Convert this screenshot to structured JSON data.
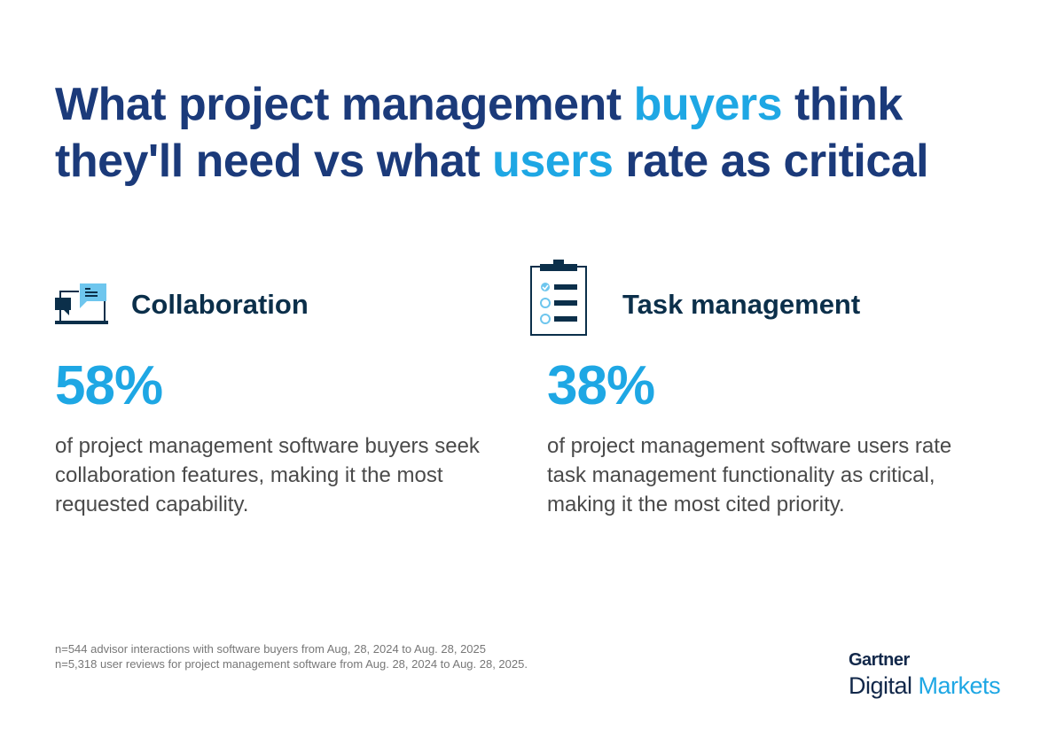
{
  "title": {
    "line1_pre": "What project management ",
    "line1_accent": "buyers",
    "line1_post": " think",
    "line2_pre": "they'll need vs what ",
    "line2_accent": "users",
    "line2_post": " rate as critical"
  },
  "colors": {
    "title": "#1b3a7a",
    "accent": "#1ea7e4",
    "heading": "#0b2f4a",
    "body": "#4a4a4a"
  },
  "stats": [
    {
      "icon": "collaboration-chat-icon",
      "heading": "Collaboration",
      "percent": "58%",
      "description": "of project management software buyers seek collaboration features, making it the most requested capability."
    },
    {
      "icon": "clipboard-checklist-icon",
      "heading": "Task management",
      "percent": "38%",
      "description": "of project management software users rate task management functionality as critical, making it the most cited priority."
    }
  ],
  "footnotes": [
    "n=544 advisor interactions with software buyers from Aug, 28, 2024 to Aug. 28, 2025",
    "n=5,318 user reviews for project management software from Aug. 28, 2024 to Aug. 28, 2025."
  ],
  "logo": {
    "brand": "Gartner",
    "product_dark": "Digital",
    "product_accent": "Markets"
  }
}
